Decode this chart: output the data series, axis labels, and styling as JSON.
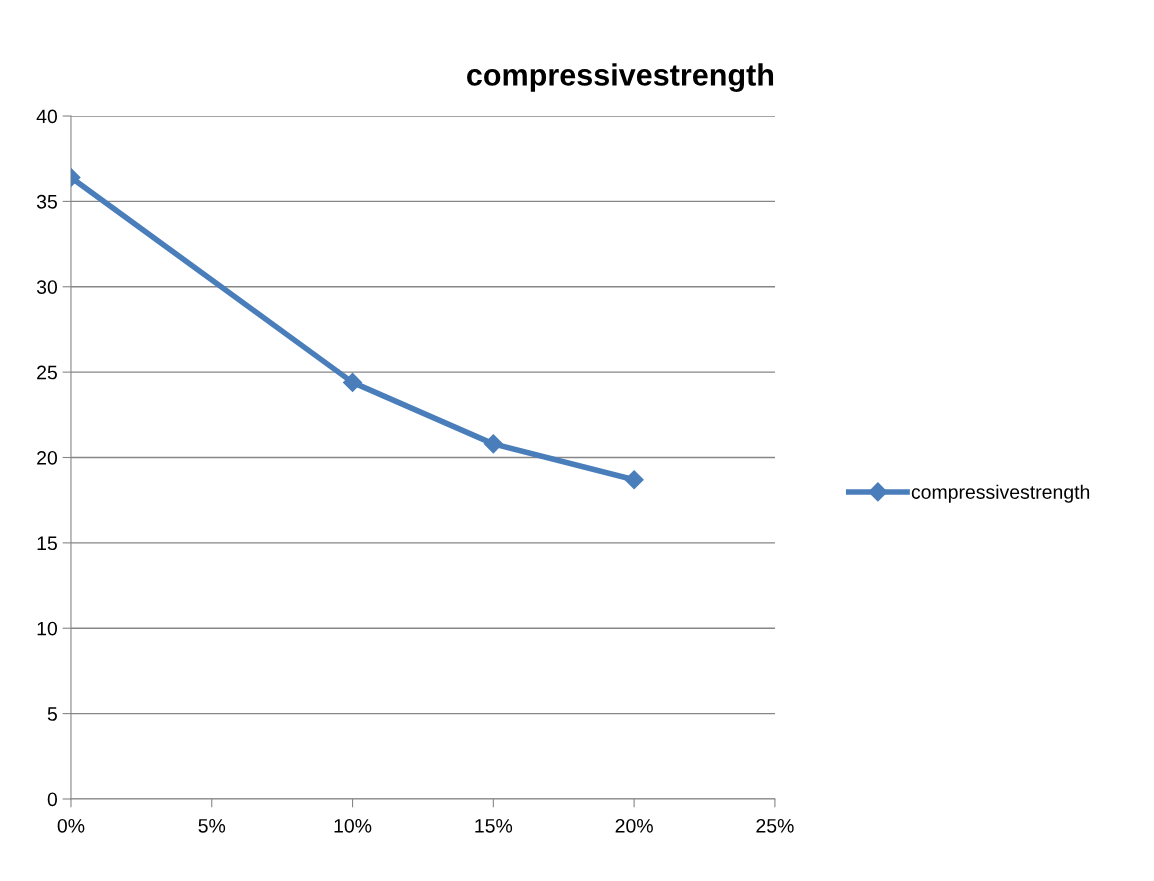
{
  "chart_data": {
    "type": "line",
    "title": "compressivestrength",
    "x": [
      0,
      10,
      15,
      20
    ],
    "series": [
      {
        "name": "compressivestrength",
        "color": "#4a7ebb",
        "values": [
          36.4,
          24.4,
          20.8,
          18.7
        ]
      }
    ],
    "xlim": [
      0,
      25
    ],
    "xticks": [
      {
        "value": 0,
        "label": "0%"
      },
      {
        "value": 5,
        "label": "5%"
      },
      {
        "value": 10,
        "label": "10%"
      },
      {
        "value": 15,
        "label": "15%"
      },
      {
        "value": 20,
        "label": "20%"
      },
      {
        "value": 25,
        "label": "25%"
      }
    ],
    "ylim": [
      0,
      40
    ],
    "yticks": [
      0,
      5,
      10,
      15,
      20,
      25,
      30,
      35,
      40
    ],
    "grid": "y",
    "legend": "right",
    "marker": "diamond",
    "line_style": "solid"
  }
}
